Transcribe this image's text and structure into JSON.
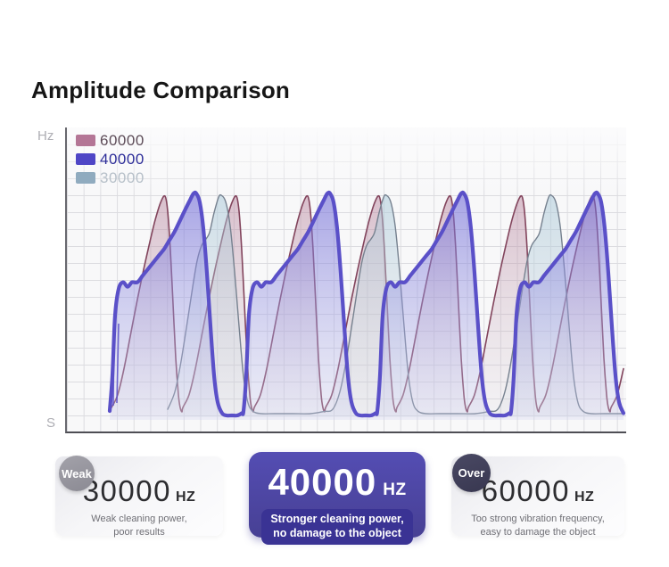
{
  "title": "Amplitude Comparison",
  "chart": {
    "y_axis_top_label": "Hz",
    "x_axis_bottom_label": "S",
    "legend": [
      {
        "label": "60000",
        "color": "#b47696"
      },
      {
        "label": "40000",
        "color": "#4f46c6"
      },
      {
        "label": "30000",
        "color": "#90abbf"
      }
    ]
  },
  "chart_data": {
    "type": "area",
    "title": "Amplitude Comparison",
    "x_axis": {
      "label": "S",
      "ticks": []
    },
    "y_axis": {
      "label": "Hz",
      "ticks": []
    },
    "grid": true,
    "legend_position": "top-left",
    "plot": {
      "x0": 73,
      "x1": 700,
      "y_top": 143,
      "y_bottom": 486
    },
    "series": [
      {
        "name": "60000",
        "frequency_hz": 60000,
        "line_color": "#82445c",
        "line_width": 1.6,
        "fill_top": "rgba(183,128,154,0.50)",
        "fill_bottom": "rgba(210,200,210,0.12)",
        "peak_xs": [
          185,
          265,
          345,
          425,
          505,
          585,
          665,
          745
        ],
        "peak_y": 220,
        "valley_y": 462,
        "close_y": 467,
        "cycle": [
          [
            -60,
            0.02
          ],
          [
            -53,
            0.08
          ],
          [
            -46,
            0.2
          ],
          [
            -39,
            0.35
          ],
          [
            -32,
            0.5
          ],
          [
            -25,
            0.64
          ],
          [
            -18,
            0.77
          ],
          [
            -11,
            0.89
          ],
          [
            -5,
            0.97
          ],
          [
            0,
            1.0
          ],
          [
            3,
            0.93
          ],
          [
            6,
            0.75
          ],
          [
            9,
            0.5
          ],
          [
            12,
            0.25
          ],
          [
            15,
            0.08
          ],
          [
            17,
            0.02
          ],
          [
            19,
            0.0
          ]
        ]
      },
      {
        "name": "30000",
        "frequency_hz": 30000,
        "line_color": "#76818f",
        "line_width": 1.4,
        "fill_top": "rgba(168,200,216,0.55)",
        "fill_bottom": "rgba(205,213,221,0.15)",
        "peak_xs": [
          248,
          433,
          618
        ],
        "peak_y": 219,
        "valley_y": 464,
        "close_y": 468,
        "cycle": [
          [
            -60,
            0.02
          ],
          [
            -52,
            0.1
          ],
          [
            -45,
            0.24
          ],
          [
            -38,
            0.42
          ],
          [
            -32,
            0.58
          ],
          [
            -27,
            0.7
          ],
          [
            -22,
            0.77
          ],
          [
            -17,
            0.8
          ],
          [
            -13,
            0.83
          ],
          [
            -8,
            0.92
          ],
          [
            -3,
            0.99
          ],
          [
            0,
            1.0
          ],
          [
            5,
            0.97
          ],
          [
            10,
            0.86
          ],
          [
            15,
            0.65
          ],
          [
            20,
            0.4
          ],
          [
            25,
            0.17
          ],
          [
            30,
            0.05
          ],
          [
            36,
            0.01
          ],
          [
            45,
            0.0
          ],
          [
            60,
            0.0
          ],
          [
            80,
            0.0
          ],
          [
            100,
            0.0
          ],
          [
            115,
            0.01
          ]
        ]
      },
      {
        "name": "40000",
        "frequency_hz": 40000,
        "line_color": "#5a50c8",
        "line_width": 4.2,
        "fill_top": "rgba(108,102,214,0.60)",
        "fill_bottom": "rgba(205,208,240,0.28)",
        "peak_xs": [
          220,
          370,
          520,
          670
        ],
        "peak_y": 217,
        "valley_y": 466,
        "close_y": 471,
        "cycle": [
          [
            -97,
            0.02
          ],
          [
            -94,
            0.18
          ],
          [
            -91,
            0.45
          ],
          [
            -87,
            0.57
          ],
          [
            -82,
            0.6
          ],
          [
            -77,
            0.58
          ],
          [
            -72,
            0.6
          ],
          [
            -66,
            0.6
          ],
          [
            -60,
            0.63
          ],
          [
            -54,
            0.66
          ],
          [
            -48,
            0.69
          ],
          [
            -42,
            0.72
          ],
          [
            -36,
            0.75
          ],
          [
            -30,
            0.79
          ],
          [
            -24,
            0.83
          ],
          [
            -18,
            0.88
          ],
          [
            -12,
            0.93
          ],
          [
            -7,
            0.97
          ],
          [
            -3,
            1.0
          ],
          [
            0,
            1.0
          ],
          [
            4,
            0.96
          ],
          [
            8,
            0.84
          ],
          [
            12,
            0.64
          ],
          [
            16,
            0.4
          ],
          [
            20,
            0.18
          ],
          [
            24,
            0.06
          ],
          [
            29,
            0.01
          ],
          [
            34,
            0.0
          ],
          [
            40,
            0.0
          ],
          [
            46,
            0.0
          ],
          [
            51,
            0.01
          ]
        ]
      }
    ],
    "start_strokes": [
      [
        127,
        455,
        128,
        352
      ],
      [
        131,
        452,
        133,
        363
      ]
    ]
  },
  "cards": [
    {
      "badge": "Weak",
      "value": "30000",
      "unit": "HZ",
      "desc_line1": "Weak cleaning power,",
      "desc_line2": "poor results"
    },
    {
      "badge": "",
      "value": "40000",
      "unit": "HZ",
      "desc_line1": "Stronger cleaning power,",
      "desc_line2": "no damage to the object"
    },
    {
      "badge": "Over",
      "value": "60000",
      "unit": "HZ",
      "desc_line1": "Too strong vibration frequency,",
      "desc_line2": "easy to damage the object"
    }
  ]
}
